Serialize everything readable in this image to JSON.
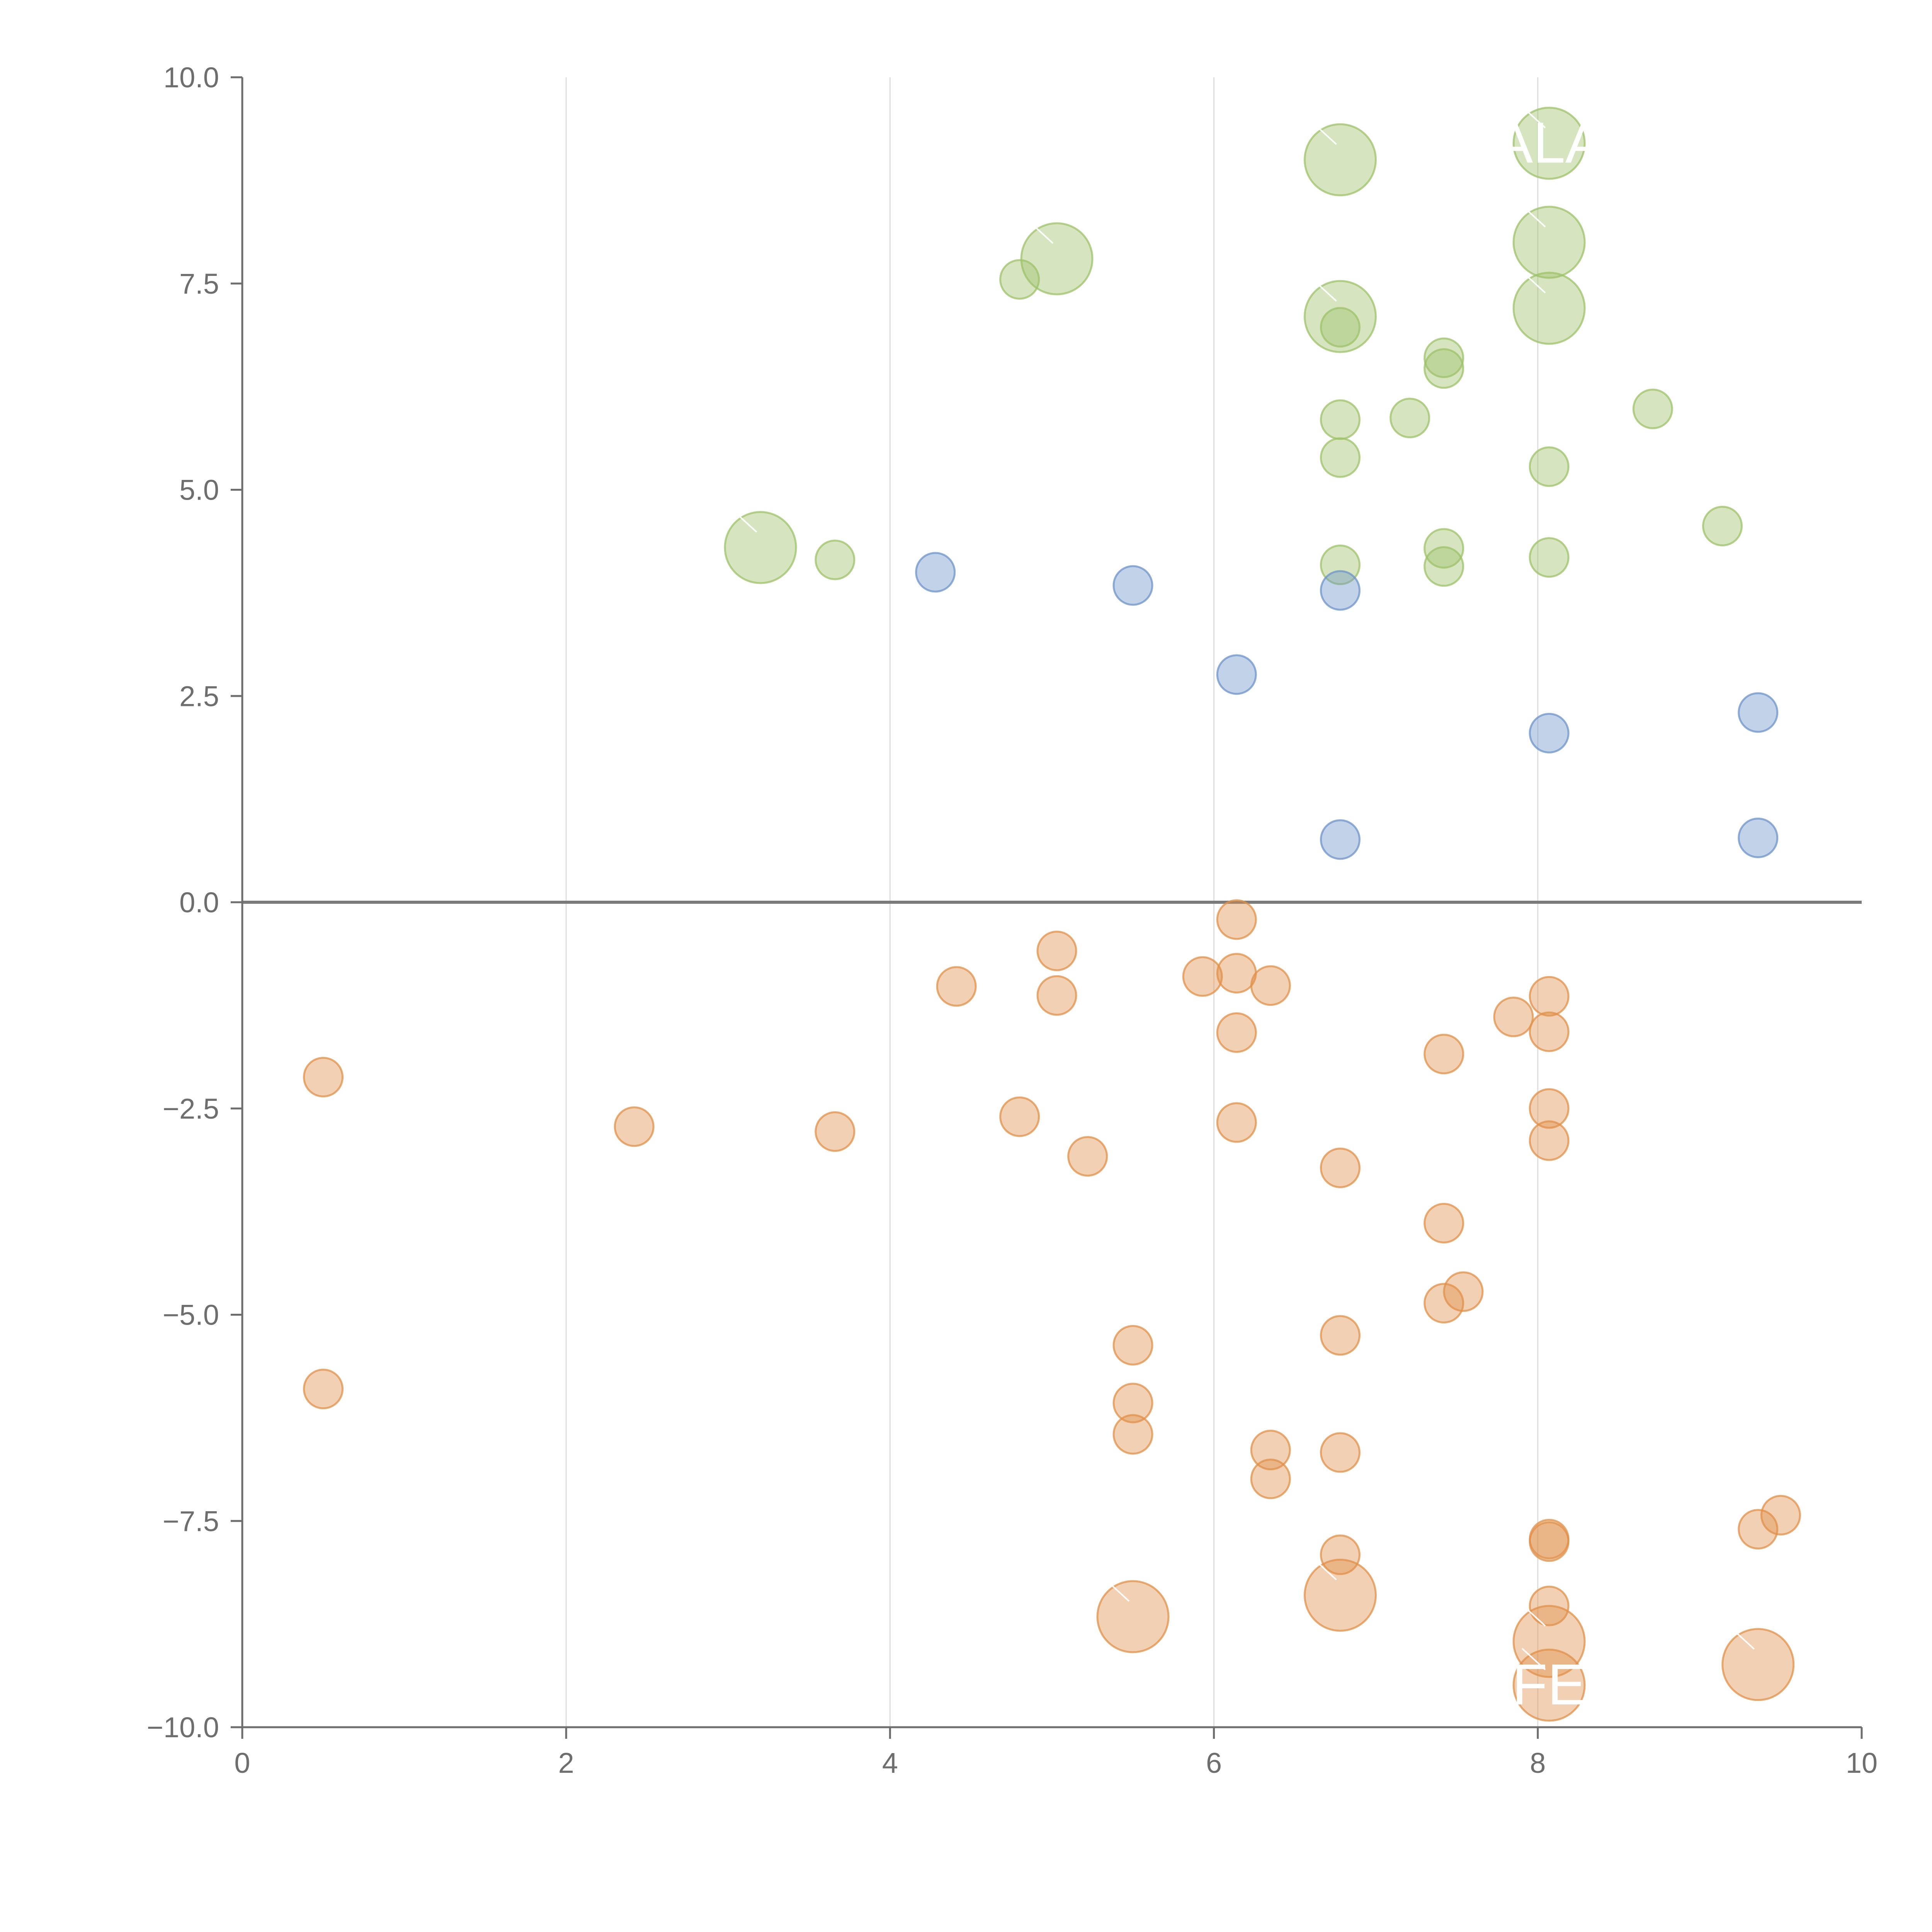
{
  "chart_data": {
    "type": "scatter",
    "title": "",
    "xlabel": "",
    "ylabel": "",
    "xlim": [
      0,
      10
    ],
    "ylim": [
      -10,
      10
    ],
    "x_ticks": [
      0,
      2,
      4,
      6,
      8,
      10
    ],
    "x_tick_labels": [
      "0",
      "2",
      "4",
      "6",
      "8",
      "10"
    ],
    "y_ticks": [
      -10,
      -7.5,
      -5,
      -2.5,
      0,
      2.5,
      5,
      7.5,
      10
    ],
    "y_tick_labels": [
      "−10.0",
      "−7.5",
      "−5.0",
      "−2.5",
      "0.0",
      "2.5",
      "5.0",
      "7.5",
      "10.0"
    ],
    "vertical_gridlines": [
      2,
      4,
      6,
      8
    ],
    "zero_line": 0,
    "colors": {
      "green": "#9dc16a",
      "blue": "#6e93c9",
      "orange": "#e0904a",
      "axis": "#6e6e6e",
      "grid": "#dddddd",
      "zero_line": "#7a7a7a",
      "label": "#ffffff"
    },
    "series": [
      {
        "name": "green",
        "color": "#9dc16a",
        "points": [
          {
            "x": 6.78,
            "y": 9.0,
            "size": "large"
          },
          {
            "x": 8.07,
            "y": 9.2,
            "size": "large"
          },
          {
            "x": 8.07,
            "y": 8.0,
            "size": "large"
          },
          {
            "x": 8.07,
            "y": 7.2,
            "size": "large"
          },
          {
            "x": 6.78,
            "y": 7.1,
            "size": "large"
          },
          {
            "x": 5.03,
            "y": 7.8,
            "size": "large"
          },
          {
            "x": 3.2,
            "y": 4.3,
            "size": "large"
          },
          {
            "x": 4.8,
            "y": 7.55,
            "size": "small"
          },
          {
            "x": 6.78,
            "y": 6.97,
            "size": "small"
          },
          {
            "x": 7.42,
            "y": 6.6,
            "size": "small"
          },
          {
            "x": 7.42,
            "y": 6.47,
            "size": "small"
          },
          {
            "x": 7.21,
            "y": 5.87,
            "size": "small"
          },
          {
            "x": 6.78,
            "y": 5.85,
            "size": "small"
          },
          {
            "x": 8.71,
            "y": 5.98,
            "size": "small"
          },
          {
            "x": 6.78,
            "y": 5.39,
            "size": "small"
          },
          {
            "x": 8.07,
            "y": 5.28,
            "size": "small"
          },
          {
            "x": 9.14,
            "y": 4.56,
            "size": "small"
          },
          {
            "x": 7.42,
            "y": 4.29,
            "size": "small"
          },
          {
            "x": 8.07,
            "y": 4.18,
            "size": "small"
          },
          {
            "x": 3.66,
            "y": 4.15,
            "size": "small"
          },
          {
            "x": 6.78,
            "y": 4.09,
            "size": "small"
          },
          {
            "x": 7.42,
            "y": 4.07,
            "size": "small"
          }
        ]
      },
      {
        "name": "blue",
        "color": "#6e93c9",
        "points": [
          {
            "x": 4.28,
            "y": 4.0,
            "size": "small"
          },
          {
            "x": 5.5,
            "y": 3.84,
            "size": "small"
          },
          {
            "x": 6.78,
            "y": 3.78,
            "size": "small"
          },
          {
            "x": 6.14,
            "y": 2.76,
            "size": "small"
          },
          {
            "x": 9.36,
            "y": 2.3,
            "size": "small"
          },
          {
            "x": 8.07,
            "y": 2.05,
            "size": "small"
          },
          {
            "x": 6.78,
            "y": 0.76,
            "size": "small"
          },
          {
            "x": 9.36,
            "y": 0.78,
            "size": "small"
          }
        ]
      },
      {
        "name": "orange",
        "color": "#e0904a",
        "points": [
          {
            "x": 6.14,
            "y": -0.21,
            "size": "small"
          },
          {
            "x": 5.03,
            "y": -0.59,
            "size": "small"
          },
          {
            "x": 4.41,
            "y": -1.02,
            "size": "small"
          },
          {
            "x": 5.03,
            "y": -1.13,
            "size": "small"
          },
          {
            "x": 5.93,
            "y": -0.9,
            "size": "small"
          },
          {
            "x": 6.14,
            "y": -0.86,
            "size": "small"
          },
          {
            "x": 6.35,
            "y": -1.01,
            "size": "small"
          },
          {
            "x": 8.07,
            "y": -1.14,
            "size": "small"
          },
          {
            "x": 7.85,
            "y": -1.39,
            "size": "small"
          },
          {
            "x": 6.14,
            "y": -1.58,
            "size": "small"
          },
          {
            "x": 8.07,
            "y": -1.57,
            "size": "small"
          },
          {
            "x": 7.42,
            "y": -1.84,
            "size": "small"
          },
          {
            "x": 0.5,
            "y": -2.12,
            "size": "small"
          },
          {
            "x": 8.07,
            "y": -2.5,
            "size": "small"
          },
          {
            "x": 4.8,
            "y": -2.6,
            "size": "small"
          },
          {
            "x": 6.14,
            "y": -2.67,
            "size": "small"
          },
          {
            "x": 2.42,
            "y": -2.72,
            "size": "small"
          },
          {
            "x": 3.66,
            "y": -2.78,
            "size": "small"
          },
          {
            "x": 8.07,
            "y": -2.89,
            "size": "small"
          },
          {
            "x": 5.22,
            "y": -3.08,
            "size": "small"
          },
          {
            "x": 6.78,
            "y": -3.22,
            "size": "small"
          },
          {
            "x": 7.42,
            "y": -3.89,
            "size": "small"
          },
          {
            "x": 7.54,
            "y": -4.72,
            "size": "small"
          },
          {
            "x": 7.42,
            "y": -4.86,
            "size": "small"
          },
          {
            "x": 6.78,
            "y": -5.25,
            "size": "small"
          },
          {
            "x": 5.5,
            "y": -5.37,
            "size": "small"
          },
          {
            "x": 0.5,
            "y": -5.9,
            "size": "small"
          },
          {
            "x": 5.5,
            "y": -6.07,
            "size": "small"
          },
          {
            "x": 5.5,
            "y": -6.45,
            "size": "small"
          },
          {
            "x": 6.35,
            "y": -6.64,
            "size": "small"
          },
          {
            "x": 6.78,
            "y": -6.67,
            "size": "small"
          },
          {
            "x": 6.35,
            "y": -6.99,
            "size": "small"
          },
          {
            "x": 9.5,
            "y": -7.43,
            "size": "small"
          },
          {
            "x": 9.36,
            "y": -7.6,
            "size": "small"
          },
          {
            "x": 8.07,
            "y": -7.72,
            "size": "small"
          },
          {
            "x": 8.07,
            "y": -7.75,
            "size": "small"
          },
          {
            "x": 6.78,
            "y": -7.91,
            "size": "small"
          },
          {
            "x": 6.78,
            "y": -8.4,
            "size": "large"
          },
          {
            "x": 8.07,
            "y": -8.53,
            "size": "small"
          },
          {
            "x": 5.5,
            "y": -8.66,
            "size": "large"
          },
          {
            "x": 8.07,
            "y": -8.96,
            "size": "large"
          },
          {
            "x": 9.36,
            "y": -9.24,
            "size": "large"
          },
          {
            "x": 8.07,
            "y": -9.49,
            "size": "large"
          }
        ]
      }
    ],
    "annotations": [
      {
        "text": "ALA",
        "x": 8.07,
        "y": 9.2
      },
      {
        "text": "FE",
        "x": 8.07,
        "y": -9.49
      }
    ]
  }
}
